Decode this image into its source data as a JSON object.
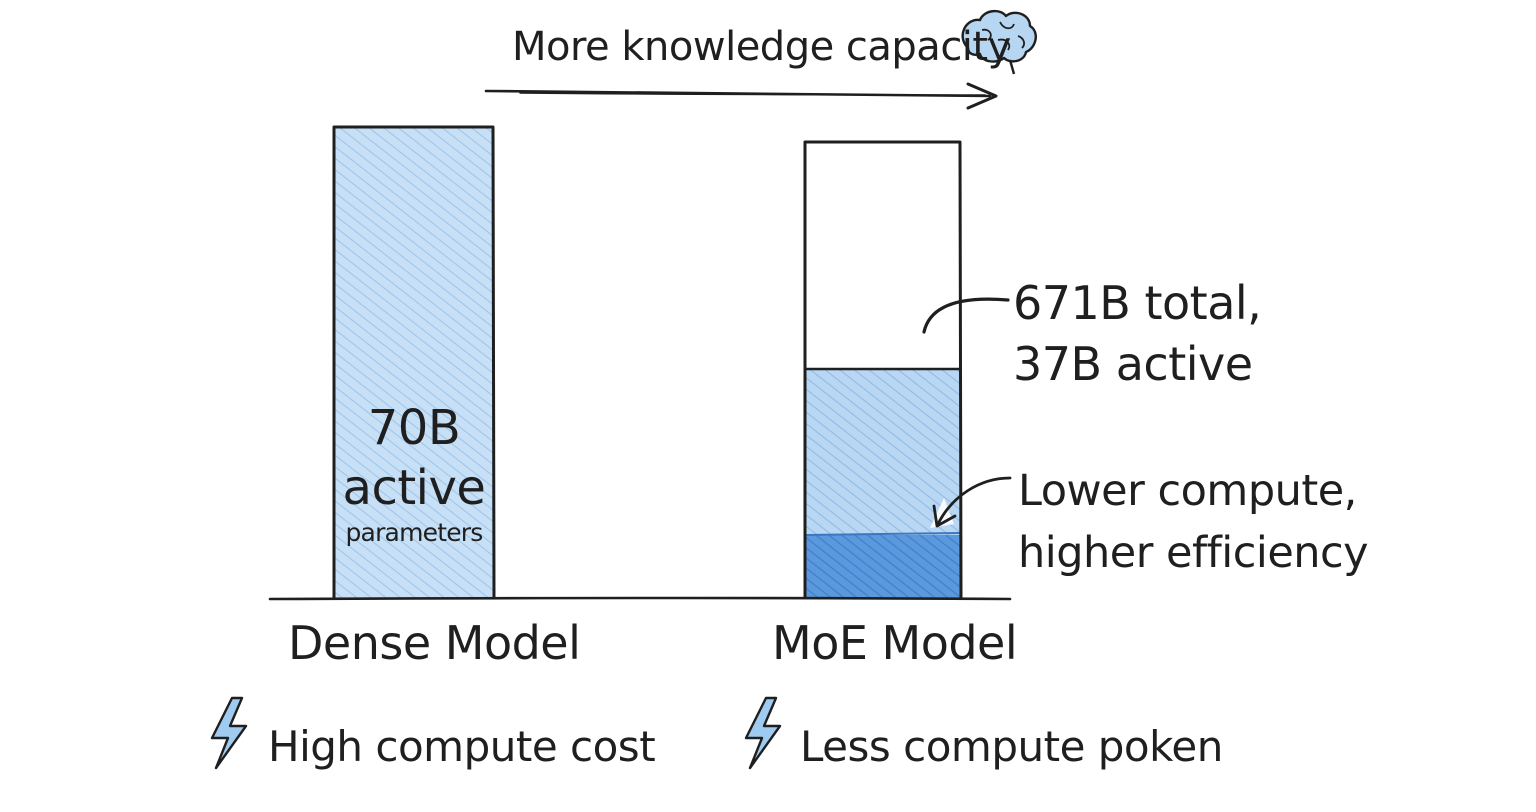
{
  "header": {
    "capacity_label": "More knowledge capacity",
    "icon": "brain-icon"
  },
  "dense": {
    "active_value": "70B",
    "active_word": "active",
    "parameters_word": "parameters",
    "label": "Dense Model",
    "cost_text": "High compute cost",
    "active_fraction": 1.0
  },
  "moe": {
    "annotation_line1": "671B total,",
    "annotation_line2": "37B active",
    "efficiency_line1": "Lower compute,",
    "efficiency_line2": "higher efficiency",
    "label": "MoE Model",
    "cost_text": "Less compute poken",
    "icon": "lightning-icon"
  },
  "colors": {
    "light_blue": "#bcd9f3",
    "mid_blue": "#7fb3e6",
    "dark_blue": "#4a8bd6",
    "ink": "#1f1f1f"
  }
}
